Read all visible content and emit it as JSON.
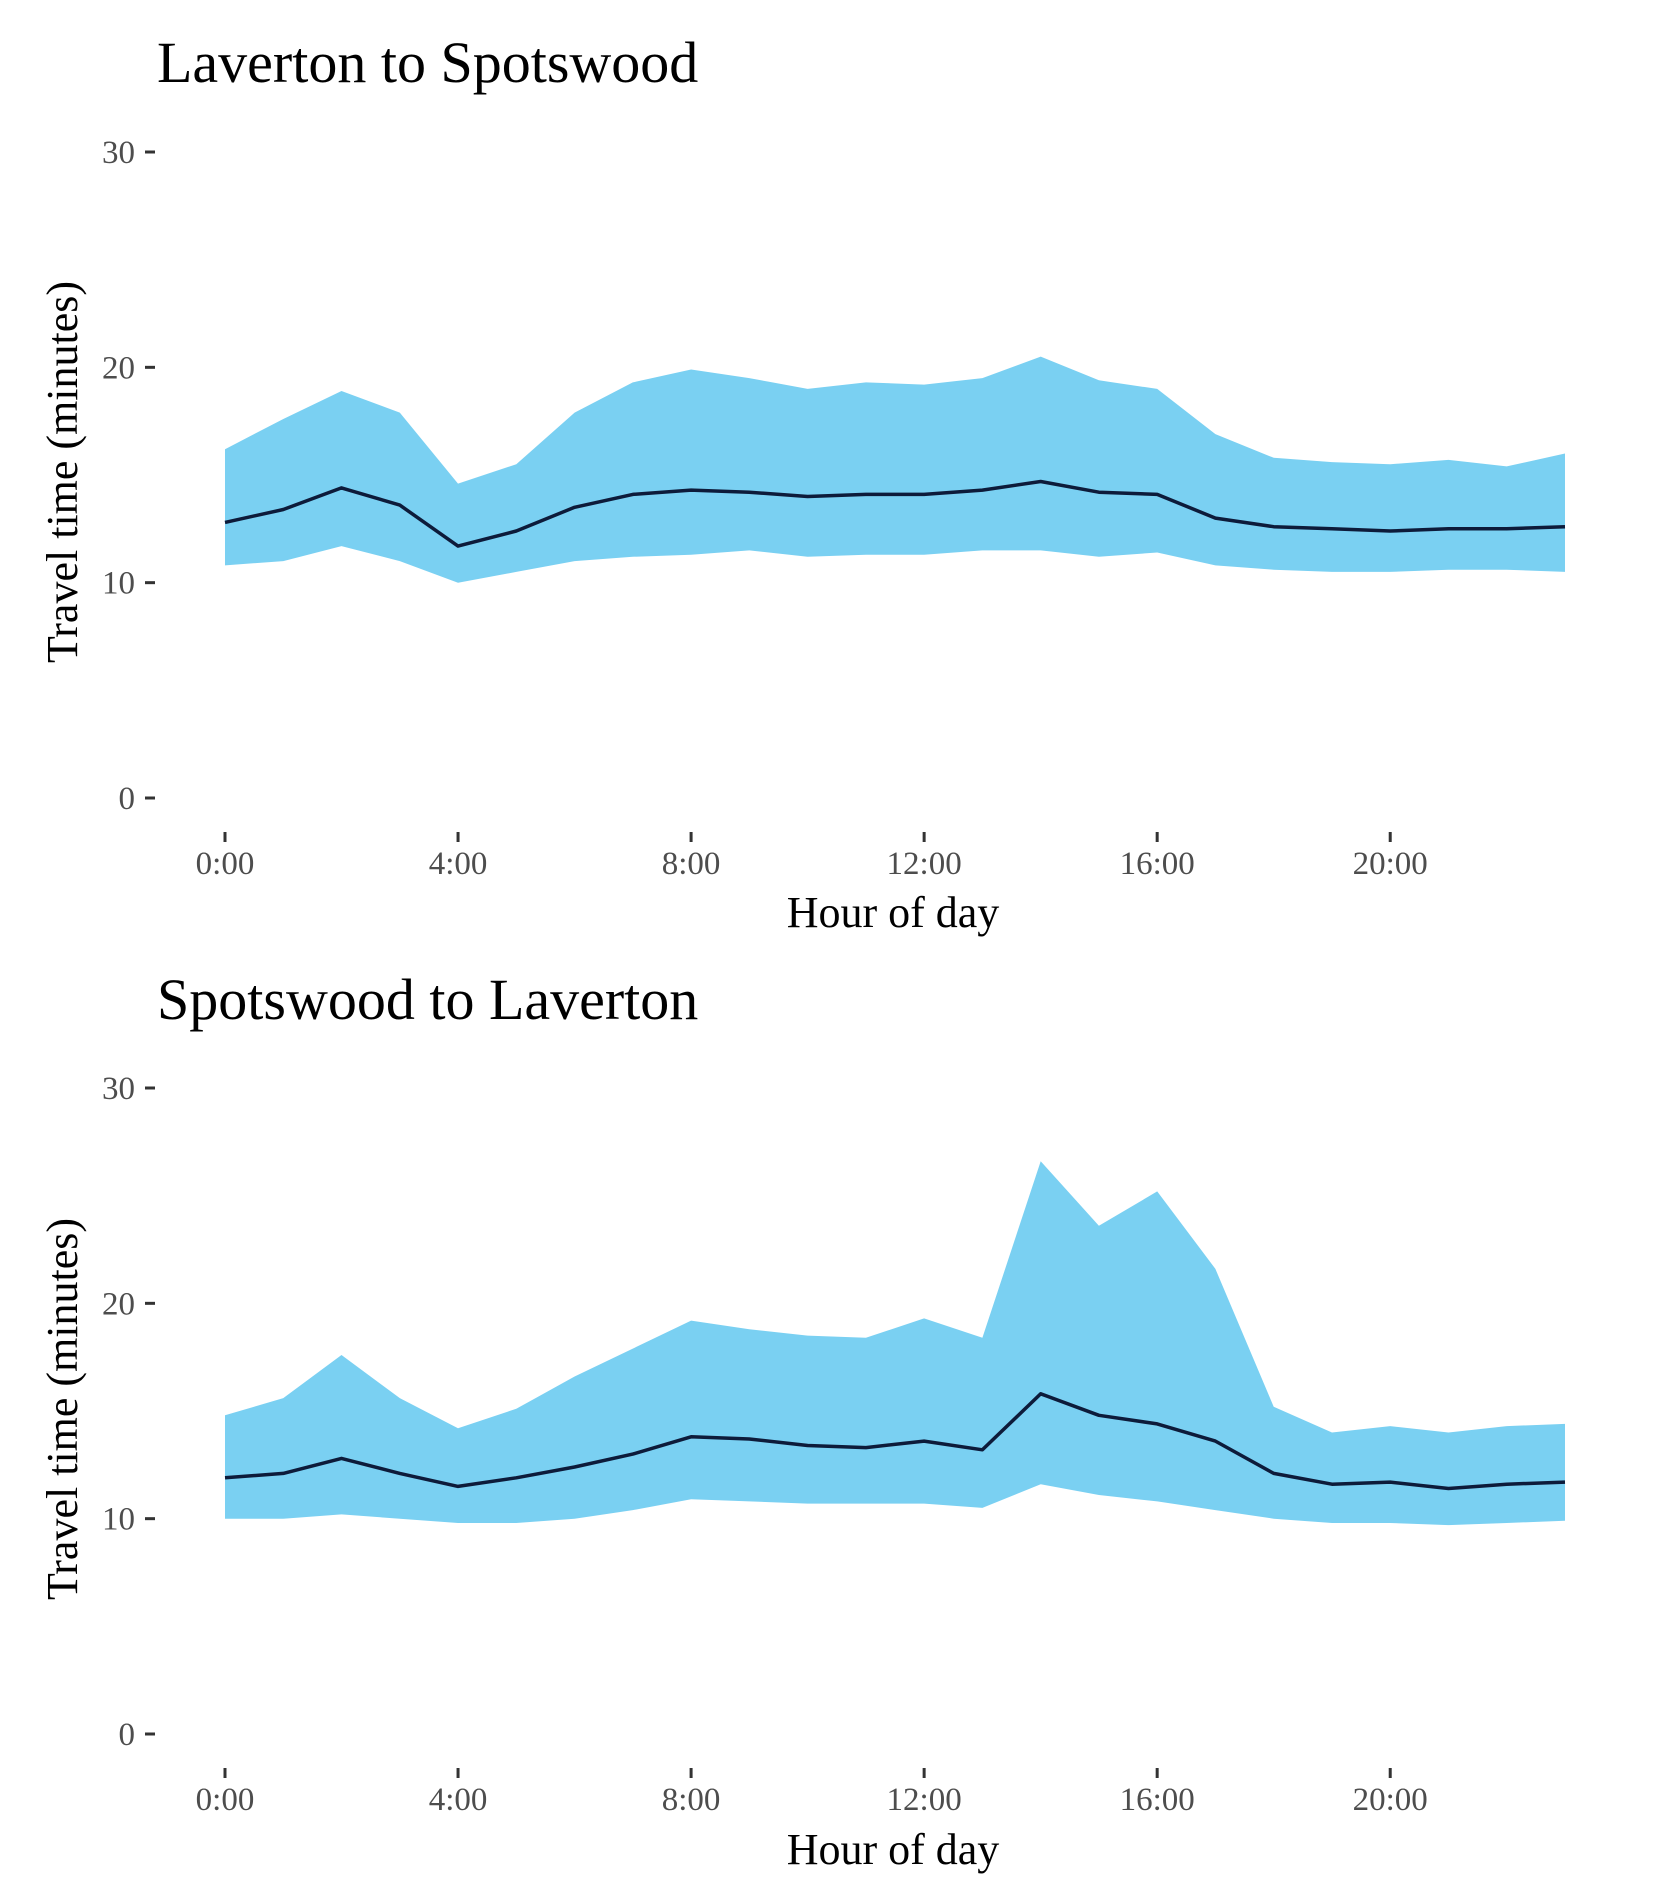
{
  "chart_data": [
    {
      "type": "area",
      "title": "Laverton to Spotswood",
      "xlabel": "Hour of day",
      "ylabel": "Travel time (minutes)",
      "ylim": [
        0,
        30
      ],
      "y_ticks": [
        "0",
        "10",
        "20",
        "30"
      ],
      "y_tick_values": [
        0,
        10,
        20,
        30
      ],
      "x_ticks": [
        "0:00",
        "4:00",
        "8:00",
        "12:00",
        "16:00",
        "20:00"
      ],
      "x_tick_values": [
        0,
        4,
        8,
        12,
        16,
        20
      ],
      "xlim": [
        0,
        23
      ],
      "grid": false,
      "band_color": "#7ad0f2",
      "line_color": "#0d1b3a",
      "x": [
        0,
        1,
        2,
        3,
        4,
        5,
        6,
        7,
        8,
        9,
        10,
        11,
        12,
        13,
        14,
        15,
        16,
        17,
        18,
        19,
        20,
        21,
        22,
        23
      ],
      "series": [
        {
          "values": [
            12.8,
            13.4,
            14.4,
            13.6,
            11.7,
            12.4,
            13.5,
            14.1,
            14.3,
            14.2,
            14.0,
            14.1,
            14.1,
            14.3,
            14.7,
            14.2,
            14.1,
            13.0,
            12.6,
            12.5,
            12.4,
            12.5,
            12.5,
            12.6
          ]
        }
      ],
      "band": {
        "lower": [
          10.8,
          11.0,
          11.7,
          11.0,
          10.0,
          10.5,
          11.0,
          11.2,
          11.3,
          11.5,
          11.2,
          11.3,
          11.3,
          11.5,
          11.5,
          11.2,
          11.4,
          10.8,
          10.6,
          10.5,
          10.5,
          10.6,
          10.6,
          10.5
        ],
        "upper": [
          16.2,
          17.6,
          18.9,
          17.9,
          14.6,
          15.5,
          17.9,
          19.3,
          19.9,
          19.5,
          19.0,
          19.3,
          19.2,
          19.5,
          20.5,
          19.4,
          19.0,
          16.9,
          15.8,
          15.6,
          15.5,
          15.7,
          15.4,
          16.0
        ]
      }
    },
    {
      "type": "area",
      "title": "Spotswood to Laverton",
      "xlabel": "Hour of day",
      "ylabel": "Travel time (minutes)",
      "ylim": [
        0,
        30
      ],
      "y_ticks": [
        "0",
        "10",
        "20",
        "30"
      ],
      "y_tick_values": [
        0,
        10,
        20,
        30
      ],
      "x_ticks": [
        "0:00",
        "4:00",
        "8:00",
        "12:00",
        "16:00",
        "20:00"
      ],
      "x_tick_values": [
        0,
        4,
        8,
        12,
        16,
        20
      ],
      "xlim": [
        0,
        23
      ],
      "grid": false,
      "band_color": "#7ad0f2",
      "line_color": "#0d1b3a",
      "x": [
        0,
        1,
        2,
        3,
        4,
        5,
        6,
        7,
        8,
        9,
        10,
        11,
        12,
        13,
        14,
        15,
        16,
        17,
        18,
        19,
        20,
        21,
        22,
        23
      ],
      "series": [
        {
          "values": [
            11.9,
            12.1,
            12.8,
            12.1,
            11.5,
            11.9,
            12.4,
            13.0,
            13.8,
            13.7,
            13.4,
            13.3,
            13.6,
            13.2,
            15.8,
            14.8,
            14.4,
            13.6,
            12.1,
            11.6,
            11.7,
            11.4,
            11.6,
            11.7
          ]
        }
      ],
      "band": {
        "lower": [
          10.0,
          10.0,
          10.2,
          10.0,
          9.8,
          9.8,
          10.0,
          10.4,
          10.9,
          10.8,
          10.7,
          10.7,
          10.7,
          10.5,
          11.6,
          11.1,
          10.8,
          10.4,
          10.0,
          9.8,
          9.8,
          9.7,
          9.8,
          9.9
        ],
        "upper": [
          14.8,
          15.6,
          17.6,
          15.6,
          14.2,
          15.1,
          16.6,
          17.9,
          19.2,
          18.8,
          18.5,
          18.4,
          19.3,
          18.4,
          26.6,
          23.6,
          25.2,
          21.6,
          15.2,
          14.0,
          14.3,
          14.0,
          14.3,
          14.4
        ]
      }
    }
  ]
}
